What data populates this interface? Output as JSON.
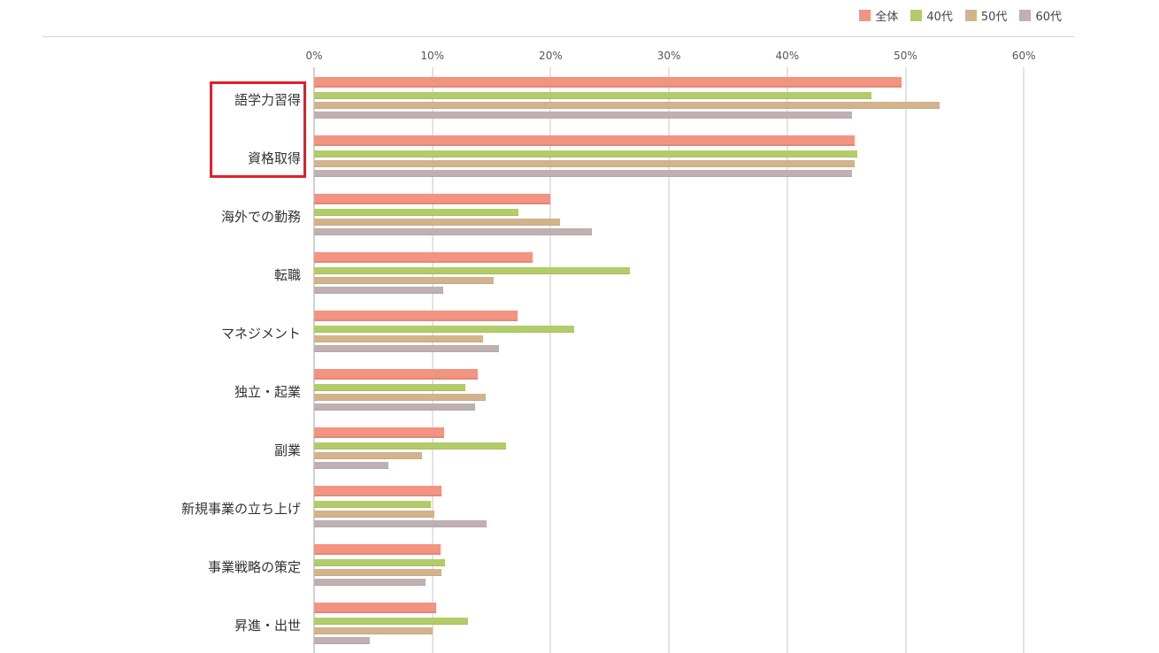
{
  "legend": [
    {
      "label": "全体",
      "color": "#f39482"
    },
    {
      "label": "40代",
      "color": "#b3cc6a"
    },
    {
      "label": "50代",
      "color": "#d3b38c"
    },
    {
      "label": "60代",
      "color": "#bfb0b2"
    }
  ],
  "axis": {
    "ticks": [
      "0%",
      "10%",
      "20%",
      "30%",
      "40%",
      "50%",
      "60%"
    ]
  },
  "highlight": {
    "color": "#e0202a",
    "categories": [
      "語学力習得",
      "資格取得"
    ]
  },
  "chart_data": {
    "type": "bar",
    "orientation": "horizontal",
    "title": "",
    "xlabel": "",
    "ylabel": "",
    "xlim": [
      0,
      60
    ],
    "tick_labels": [
      "0%",
      "10%",
      "20%",
      "30%",
      "40%",
      "50%",
      "60%"
    ],
    "grid": true,
    "legend_position": "top-right",
    "categories": [
      "語学力習得",
      "資格取得",
      "海外での勤務",
      "転職",
      "マネジメント",
      "独立・起業",
      "副業",
      "新規事業の立ち上げ",
      "事業戦略の策定",
      "昇進・出世"
    ],
    "series": [
      {
        "name": "全体",
        "color": "#f39482",
        "values": [
          49.7,
          45.7,
          20.0,
          18.5,
          17.2,
          13.8,
          11.0,
          10.8,
          10.7,
          10.3
        ]
      },
      {
        "name": "40代",
        "color": "#b3cc6a",
        "values": [
          47.1,
          45.9,
          17.3,
          26.7,
          22.0,
          12.8,
          16.2,
          9.9,
          11.1,
          13.0
        ]
      },
      {
        "name": "50代",
        "color": "#d3b38c",
        "values": [
          52.9,
          45.7,
          20.8,
          15.2,
          14.3,
          14.5,
          9.1,
          10.2,
          10.8,
          10.0
        ]
      },
      {
        "name": "60代",
        "color": "#bfb0b2",
        "values": [
          45.5,
          45.5,
          23.5,
          10.9,
          15.6,
          13.6,
          6.3,
          14.6,
          9.4,
          4.7
        ]
      }
    ]
  }
}
